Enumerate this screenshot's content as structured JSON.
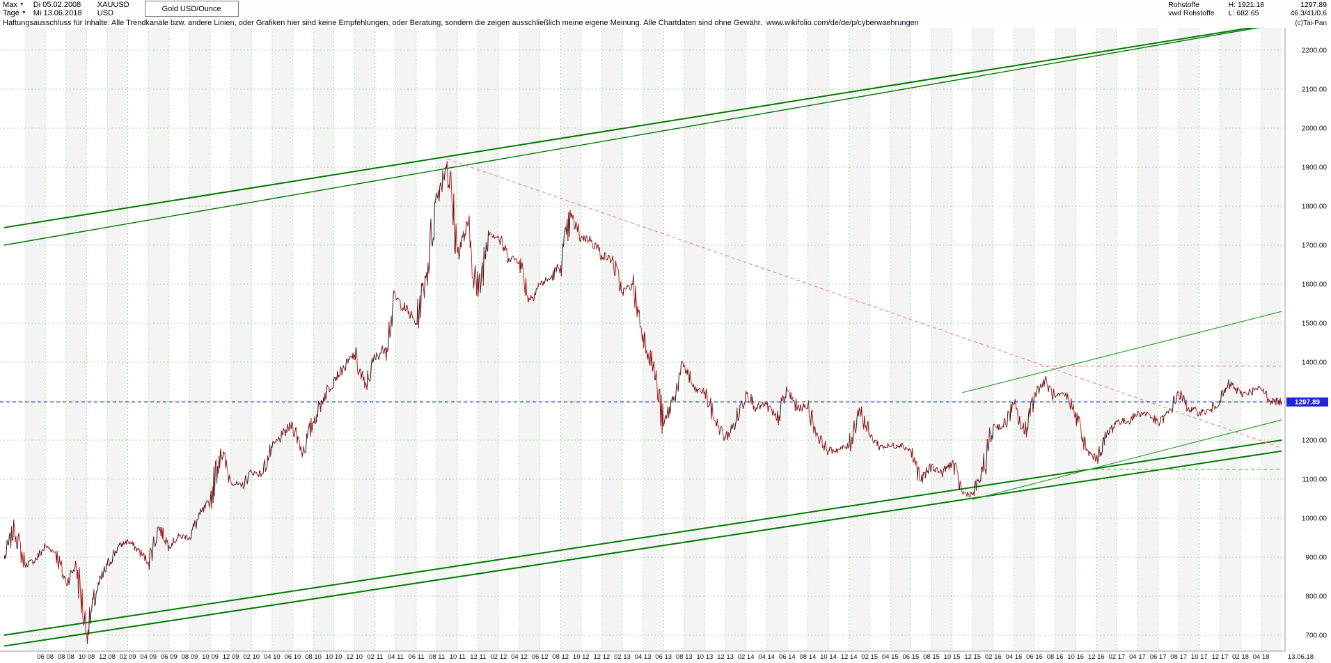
{
  "header": {
    "range_selector": "Max",
    "period_selector": "Tage",
    "start_date": "Di 05.02.2008",
    "end_date": "Mi 13.06.2018",
    "symbol": "XAUUSD",
    "currency": "USD",
    "instrument_box": "Gold USD/Ounce",
    "category": "Rohstoffe",
    "provider": "vwd Rohstoffe",
    "high_label": "H: 1921.18",
    "low_label": "L: 682.65",
    "last_price": "1297.89",
    "stats": "46.3/41/0.6",
    "copyright": "(c)Tai-Pan"
  },
  "disclaimer": {
    "text": "Haftungsausschluss für Inhalte: Alle Trendkanäle bzw. andere Linien, oder Grafiken hier sind keine Empfehlungen, oder Beratung, sondern die zeigen ausschließlich meine eigene Meinung. Alle Chartdaten sind ohne Gewähr.",
    "link": "www.wikifolio.com/de/de/p/cyberwaehrungen"
  },
  "chart_data": {
    "type": "line",
    "title": "Gold USD/Ounce (XAUUSD), Tage, 05.02.2008 - 13.06.2018",
    "x_unit": "months since 2008-02 (daily candles approximated monthly)",
    "values": [
      895,
      975,
      880,
      892,
      928,
      913,
      833,
      882,
      705,
      815,
      878,
      925,
      942,
      918,
      888,
      978,
      930,
      953,
      952,
      1008,
      1042,
      1178,
      1095,
      1080,
      1118,
      1113,
      1180,
      1212,
      1242,
      1170,
      1248,
      1310,
      1358,
      1385,
      1420,
      1333,
      1410,
      1438,
      1565,
      1535,
      1500,
      1630,
      1825,
      1915,
      1680,
      1748,
      1568,
      1738,
      1718,
      1668,
      1662,
      1560,
      1600,
      1614,
      1648,
      1772,
      1720,
      1714,
      1675,
      1662,
      1580,
      1598,
      1472,
      1390,
      1235,
      1312,
      1394,
      1328,
      1324,
      1250,
      1205,
      1244,
      1326,
      1284,
      1290,
      1250,
      1327,
      1282,
      1287,
      1209,
      1173,
      1176,
      1184,
      1283,
      1213,
      1184,
      1184,
      1190,
      1172,
      1096,
      1134,
      1115,
      1142,
      1065,
      1061,
      1118,
      1238,
      1233,
      1290,
      1215,
      1320,
      1351,
      1309,
      1316,
      1272,
      1173,
      1152,
      1211,
      1249,
      1247,
      1268,
      1269,
      1242,
      1269,
      1321,
      1280,
      1271,
      1275,
      1302,
      1345,
      1318,
      1325,
      1332,
      1301,
      1297.89
    ],
    "high": 1921.18,
    "low": 682.65,
    "last_price_line": {
      "price": 1297.89,
      "label": "1297.89",
      "color": "#2323dd",
      "dash": "5,4"
    },
    "price_axis": {
      "min": 700,
      "max": 2200,
      "step": 100
    },
    "x_axis": {
      "first_tick_month": 4,
      "tick_step_months": 2,
      "labels": [
        "06 08",
        "08 08",
        "10 08",
        "12 08",
        "02 09",
        "04 09",
        "06 09",
        "08 09",
        "10 09",
        "12 09",
        "02 10",
        "04 10",
        "06 10",
        "08 10",
        "10 10",
        "12 10",
        "02 11",
        "04 11",
        "06 11",
        "08 11",
        "10 11",
        "12 11",
        "02 12",
        "04 12",
        "06 12",
        "08 12",
        "10 12",
        "12 12",
        "02 13",
        "04 13",
        "06 13",
        "08 13",
        "10 13",
        "12 13",
        "02 14",
        "04 14",
        "06 14",
        "08 14",
        "10 14",
        "12 14",
        "02 15",
        "04 15",
        "06 15",
        "08 15",
        "10 15",
        "12 15",
        "02 16",
        "04 16",
        "06 16",
        "08 16",
        "10 16",
        "12 16",
        "02 17",
        "04 17",
        "06 17",
        "08 17",
        "10 17",
        "12 17",
        "02 18",
        "04 18"
      ],
      "last_date_label": "13.06.18"
    },
    "trend_lines": [
      {
        "name": "upper-channel-main",
        "from_month": 0,
        "from_price": 1745,
        "to_month": 124,
        "to_price": 2270,
        "color": "#007a00",
        "width": 2,
        "dash": ""
      },
      {
        "name": "upper-channel-inner",
        "from_month": 0,
        "from_price": 1700,
        "to_month": 124,
        "to_price": 2268,
        "color": "#007a00",
        "width": 1.4,
        "dash": ""
      },
      {
        "name": "lower-channel-main",
        "from_month": 0,
        "from_price": 700,
        "to_month": 124,
        "to_price": 1200,
        "color": "#007a00",
        "width": 2,
        "dash": ""
      },
      {
        "name": "lower-channel-outer",
        "from_month": 0,
        "from_price": 672,
        "to_month": 124,
        "to_price": 1172,
        "color": "#007a00",
        "width": 2,
        "dash": ""
      },
      {
        "name": "minor-uptrend-support",
        "from_month": 94,
        "from_price": 1048,
        "to_month": 124,
        "to_price": 1252,
        "color": "#2fa12f",
        "width": 1.2,
        "dash": ""
      },
      {
        "name": "minor-uptrend-resistance",
        "from_month": 93,
        "from_price": 1322,
        "to_month": 124,
        "to_price": 1530,
        "color": "#2fa12f",
        "width": 1.2,
        "dash": ""
      },
      {
        "name": "downtrend-from-2011-peak",
        "from_month": 43,
        "from_price": 1921,
        "to_month": 124,
        "to_price": 1180,
        "color": "#f08a8a",
        "width": 1.2,
        "dash": "5,4"
      },
      {
        "name": "resistance-horizontal-1390",
        "from_month": 100,
        "from_price": 1390,
        "to_month": 124,
        "to_price": 1390,
        "color": "#f08a8a",
        "width": 1.2,
        "dash": "5,4"
      },
      {
        "name": "support-horizontal-1125",
        "from_month": 104,
        "from_price": 1125,
        "to_month": 124,
        "to_price": 1125,
        "color": "#57c957",
        "width": 1.2,
        "dash": "5,4"
      }
    ],
    "style": {
      "grid_color": "#a9dba9",
      "stripe_color": "#f4f4f4",
      "up_color": "#141414",
      "down_color": "#cc1f1f"
    }
  }
}
